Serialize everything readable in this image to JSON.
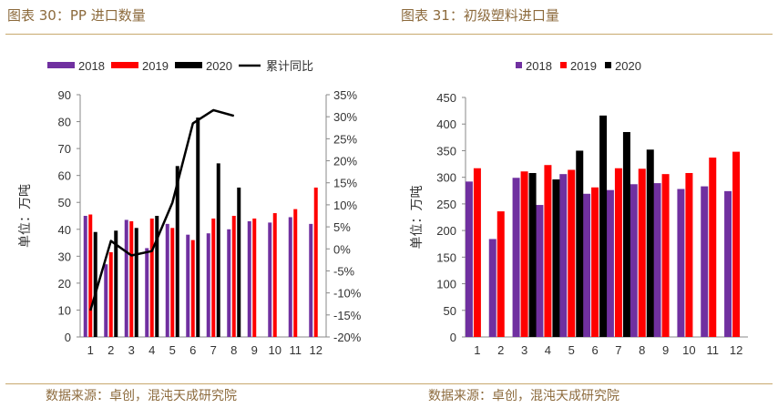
{
  "titles": {
    "left": "图表 30：PP 进口数量",
    "right": "图表 31：初级塑料进口量"
  },
  "sources": {
    "left": "数据来源：卓创，混沌天成研究院",
    "right": "数据来源：卓创，混沌天成研究院"
  },
  "colors": {
    "s2018": "#7030a0",
    "s2019": "#ff0000",
    "s2020": "#000000",
    "cum": "#000000",
    "accent": "#8c6a3c"
  },
  "chart_data": [
    {
      "type": "bar",
      "title": "PP 进口数量",
      "categories": [
        "1",
        "2",
        "3",
        "4",
        "5",
        "6",
        "7",
        "8",
        "9",
        "10",
        "11",
        "12"
      ],
      "ylabel": "单位：万吨",
      "ylim": [
        0,
        90
      ],
      "y_ticks": [
        0,
        10,
        20,
        30,
        40,
        50,
        60,
        70,
        80,
        90
      ],
      "y2lim": [
        -20,
        35
      ],
      "y2_ticks": [
        "-20%",
        "-15%",
        "-10%",
        "-5%",
        "0%",
        "5%",
        "10%",
        "15%",
        "20%",
        "25%",
        "30%",
        "35%"
      ],
      "legend_position": "top",
      "grid": false,
      "series": [
        {
          "name": "2018",
          "type": "bar",
          "values": [
            45,
            27,
            43.5,
            33,
            42,
            38,
            38.5,
            40,
            43,
            42.5,
            44.5,
            42
          ]
        },
        {
          "name": "2019",
          "type": "bar",
          "values": [
            45.5,
            31.5,
            43,
            44,
            40.5,
            36,
            44,
            45,
            44,
            46,
            47.5,
            55.5
          ]
        },
        {
          "name": "2020",
          "type": "bar",
          "values": [
            39,
            39.5,
            40.5,
            45,
            63.5,
            81.5,
            64.5,
            55.5,
            null,
            null,
            null,
            null
          ]
        },
        {
          "name": "累计同比",
          "type": "line",
          "axis": "right",
          "values": [
            -14,
            1.8,
            -1.5,
            -0.5,
            10.5,
            28.5,
            31.5,
            30.2,
            null,
            null,
            null,
            null
          ]
        }
      ]
    },
    {
      "type": "bar",
      "title": "初级塑料进口量",
      "categories": [
        "1",
        "2",
        "3",
        "4",
        "5",
        "6",
        "7",
        "8",
        "9",
        "10",
        "11",
        "12"
      ],
      "ylabel": "单位：万吨",
      "ylim": [
        0,
        450
      ],
      "y_ticks": [
        0,
        50,
        100,
        150,
        200,
        250,
        300,
        350,
        400,
        450
      ],
      "legend_position": "top",
      "grid": false,
      "series": [
        {
          "name": "2018",
          "values": [
            292,
            184,
            299,
            248,
            306,
            269,
            276,
            287,
            289,
            278,
            283,
            274
          ]
        },
        {
          "name": "2019",
          "values": [
            317,
            236,
            311,
            323,
            314,
            281,
            317,
            316,
            306,
            308,
            337,
            348
          ]
        },
        {
          "name": "2020",
          "values": [
            null,
            null,
            308,
            296,
            350,
            416,
            385,
            352,
            null,
            null,
            null,
            null
          ]
        }
      ]
    }
  ]
}
